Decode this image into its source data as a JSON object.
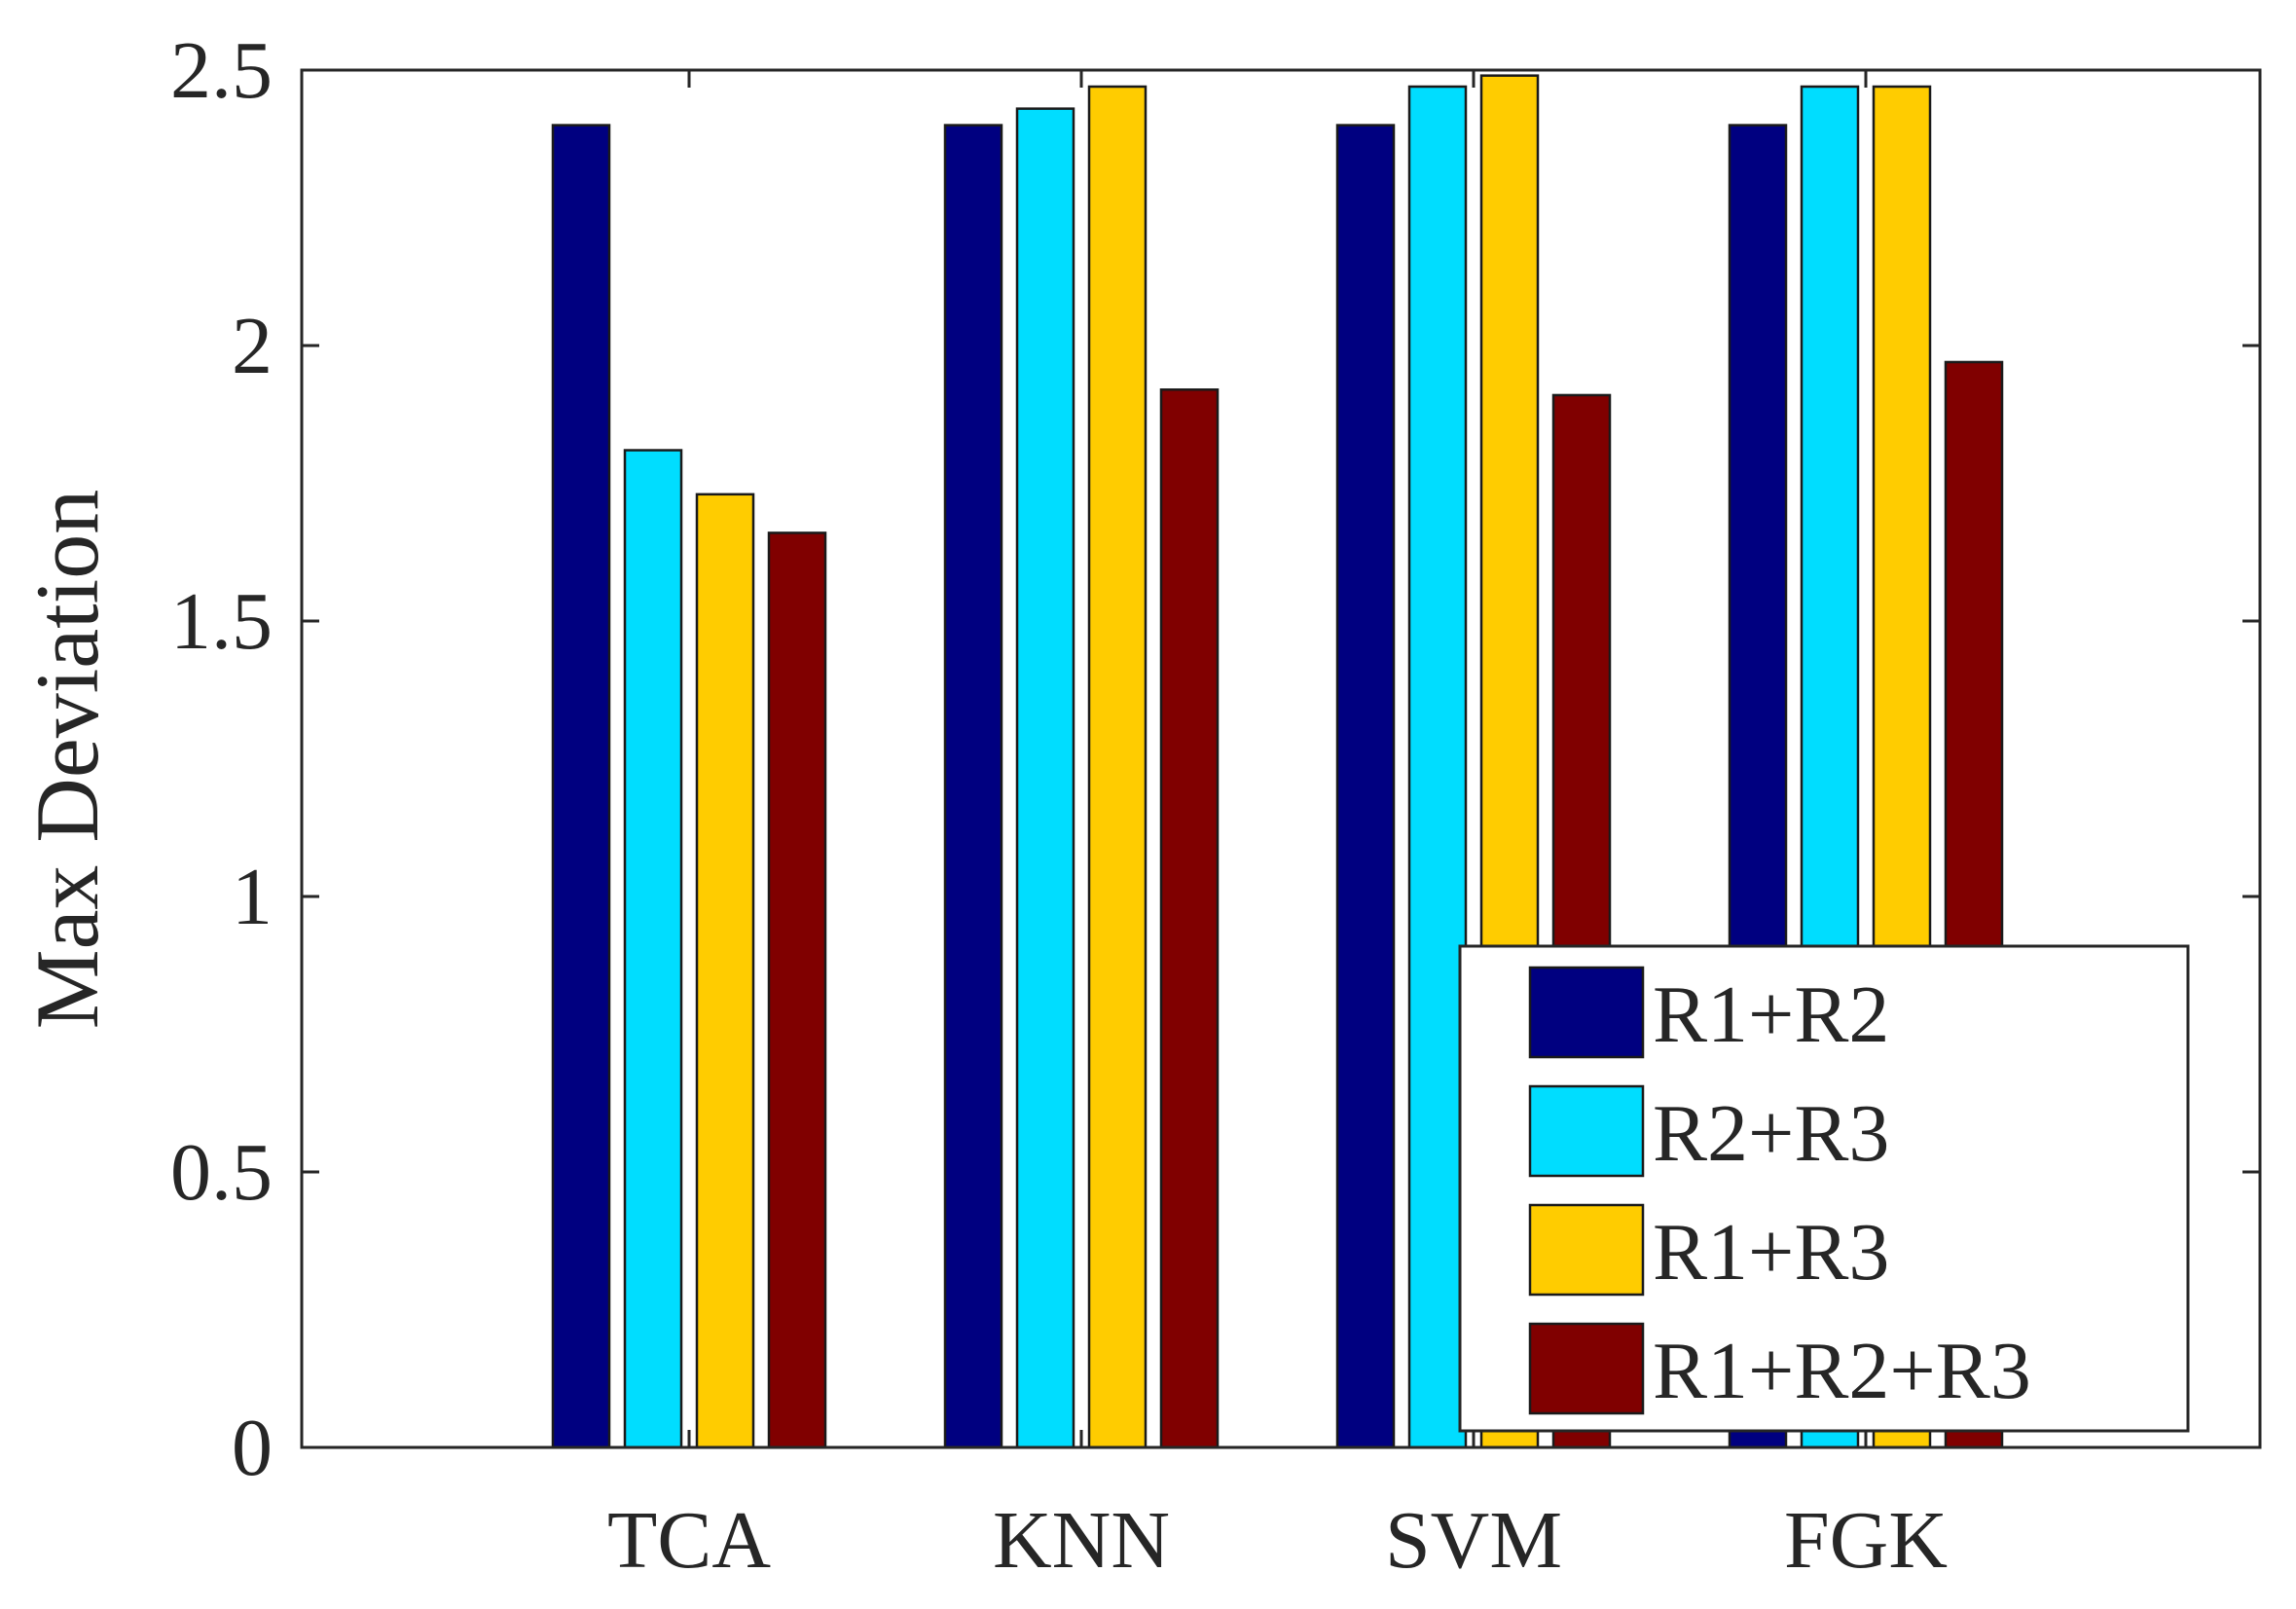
{
  "chart_data": {
    "type": "bar",
    "title": "",
    "xlabel": "",
    "ylabel": "Max Deviation",
    "ylim": [
      0,
      2.5
    ],
    "yticks": [
      "0",
      "0.5",
      "1",
      "1.5",
      "2",
      "2.5"
    ],
    "categories": [
      "TCA",
      "KNN",
      "SVM",
      "FGK"
    ],
    "series": [
      {
        "name": "R1+R2",
        "color": "#000080",
        "values": [
          2.4,
          2.4,
          2.4,
          2.4
        ]
      },
      {
        "name": "R2+R3",
        "color": "#00DDFF",
        "values": [
          1.81,
          2.43,
          2.47,
          2.47
        ]
      },
      {
        "name": "R1+R3",
        "color": "#FFCC00",
        "values": [
          1.73,
          2.47,
          2.49,
          2.47
        ]
      },
      {
        "name": "R1+R2+R3",
        "color": "#800000",
        "values": [
          1.66,
          1.92,
          1.91,
          1.97
        ]
      }
    ],
    "legend_position": "bottom-right",
    "grid": false
  }
}
